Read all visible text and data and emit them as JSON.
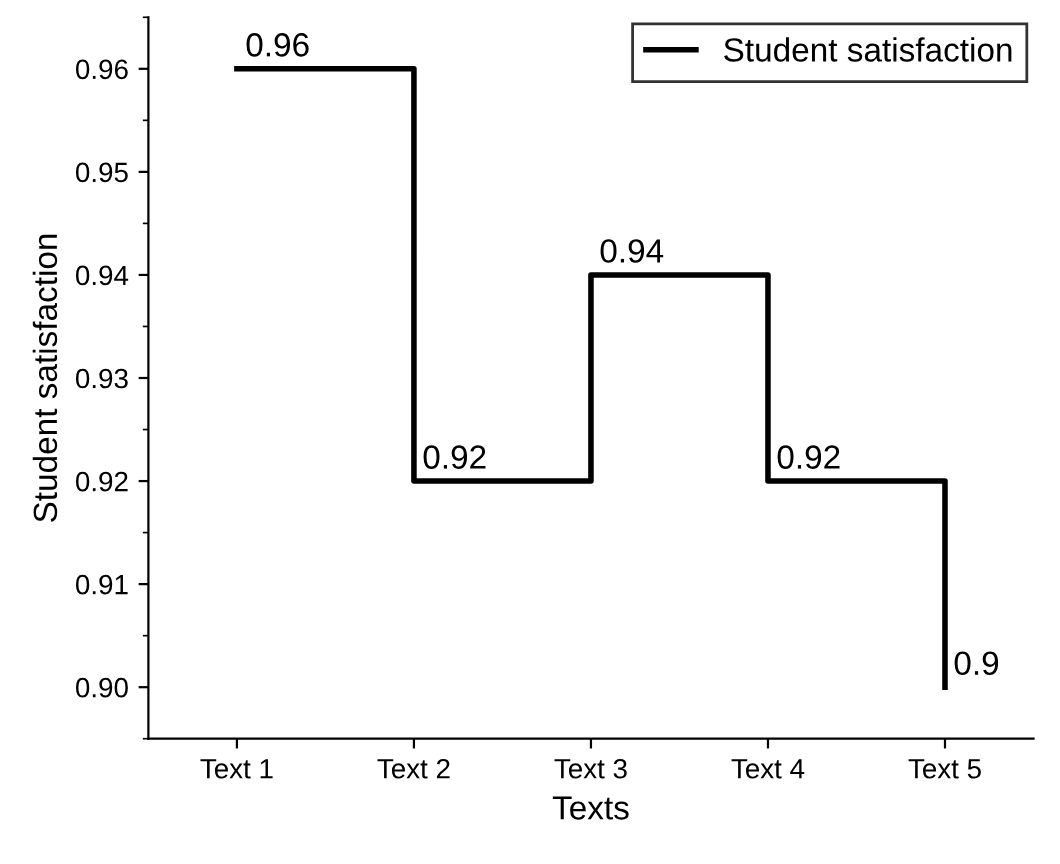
{
  "chart_data": {
    "type": "step",
    "xlabel": "Texts",
    "ylabel": "Student satisfaction",
    "categories": [
      "Text 1",
      "Text 2",
      "Text 3",
      "Text 4",
      "Text 5"
    ],
    "series": [
      {
        "name": "Student satisfaction",
        "color": "#000000",
        "values": [
          0.96,
          0.92,
          0.94,
          0.92,
          0.9
        ]
      }
    ],
    "ylim": [
      0.895,
      0.965
    ],
    "yticks": [
      {
        "value": 0.9,
        "label": "0.90"
      },
      {
        "value": 0.91,
        "label": "0.91"
      },
      {
        "value": 0.92,
        "label": "0.92"
      },
      {
        "value": 0.93,
        "label": "0.93"
      },
      {
        "value": 0.94,
        "label": "0.94"
      },
      {
        "value": 0.95,
        "label": "0.95"
      },
      {
        "value": 0.96,
        "label": "0.96"
      }
    ],
    "data_labels": true,
    "legend": "top right",
    "grid": false,
    "line_style": "solid",
    "marker": "none"
  }
}
